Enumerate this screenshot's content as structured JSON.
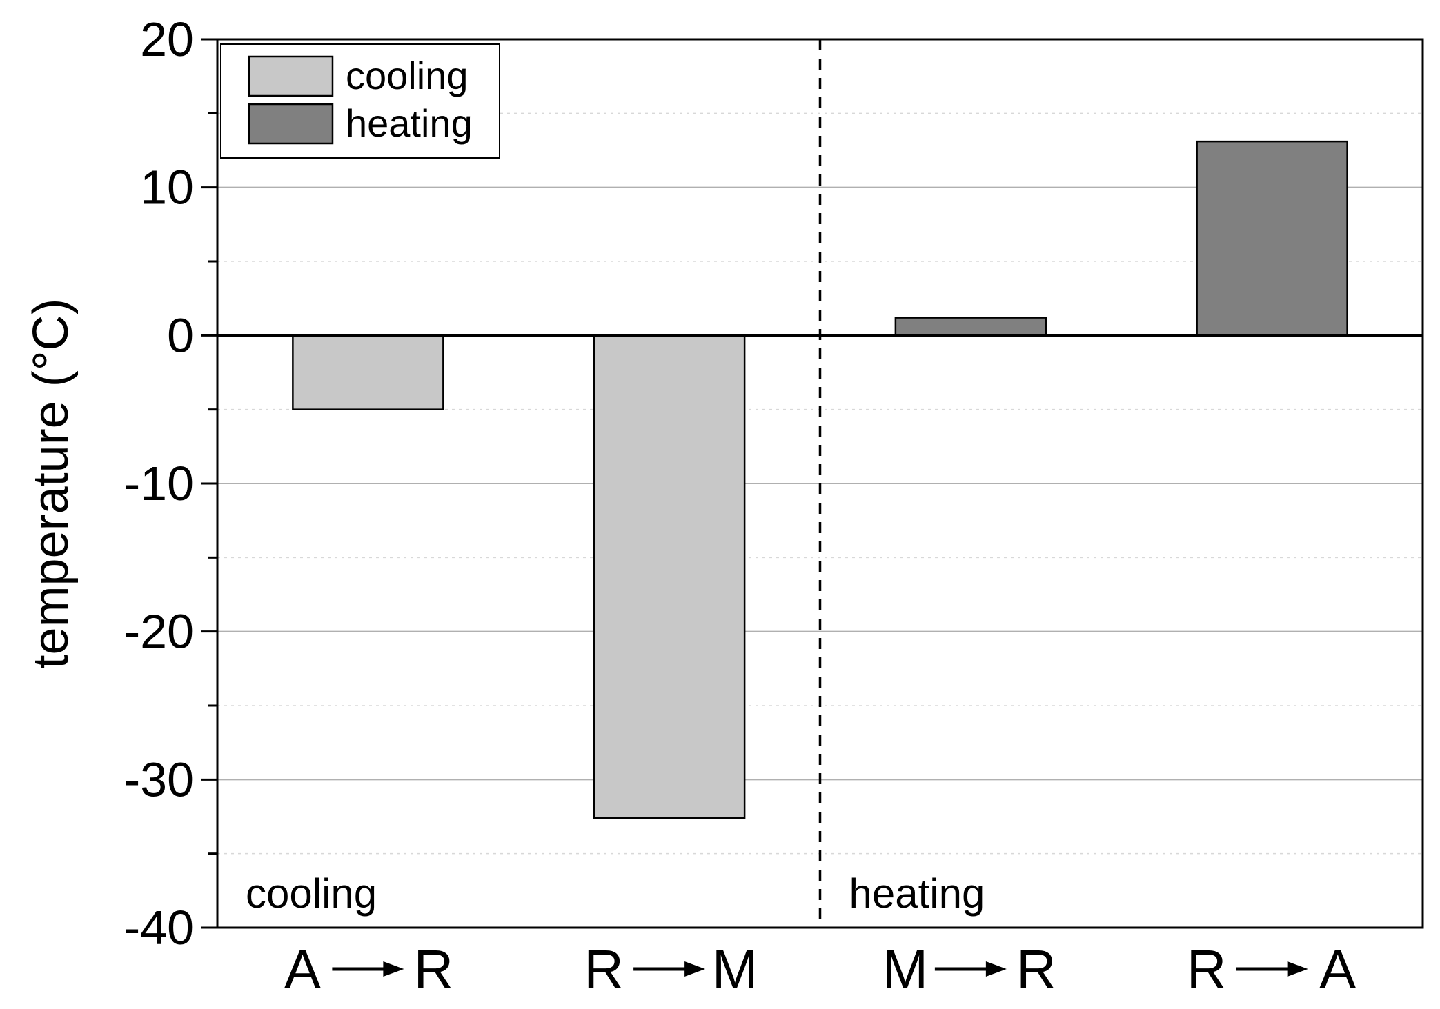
{
  "chart_data": {
    "type": "bar",
    "categories": [
      {
        "from": "A",
        "to": "R"
      },
      {
        "from": "R",
        "to": "M"
      },
      {
        "from": "M",
        "to": "R"
      },
      {
        "from": "R",
        "to": "A"
      }
    ],
    "series": [
      {
        "name": "cooling",
        "color": "#c8c8c8",
        "values": [
          -5,
          -32.6,
          null,
          null
        ]
      },
      {
        "name": "heating",
        "color": "#808080",
        "values": [
          null,
          null,
          1.2,
          13.1
        ]
      }
    ],
    "ylabel": "temperature (°C)",
    "xlabel": "",
    "ylim": [
      -40,
      20
    ],
    "yticks": [
      -40,
      -30,
      -20,
      -10,
      0,
      10,
      20
    ],
    "ytick_labels": [
      "-40",
      "-30",
      "-20",
      "-10",
      "0",
      "10",
      "20"
    ],
    "minor_tick_step": 5,
    "grid": true,
    "legend": {
      "position": "top-left",
      "entries": [
        "cooling",
        "heating"
      ]
    },
    "annotations": {
      "left_region": "cooling",
      "right_region": "heating"
    },
    "divider_after_category": 2
  }
}
